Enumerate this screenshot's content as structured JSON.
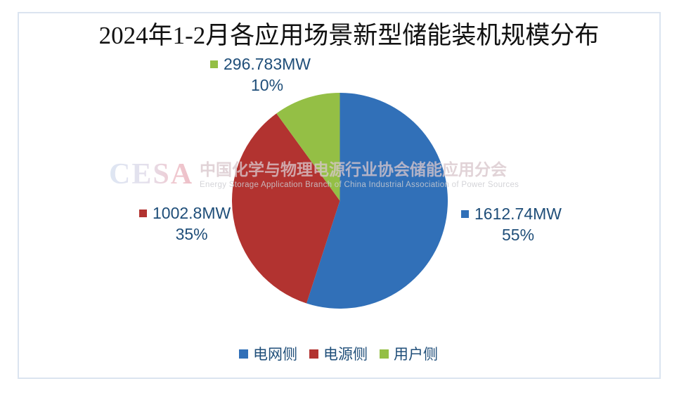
{
  "chart_data": {
    "type": "pie",
    "title": "2024年1-2月各应用场景新型储能装机规模分布",
    "unit": "MW",
    "start_angle_deg": 0,
    "direction": "clockwise",
    "slices": [
      {
        "name": "电网侧",
        "value_mw": 1612.74,
        "percent": 55,
        "value_label": "1612.74MW",
        "percent_label": "55%",
        "color": "#3170B8"
      },
      {
        "name": "电源侧",
        "value_mw": 1002.8,
        "percent": 35,
        "value_label": "1002.8MW",
        "percent_label": "35%",
        "color": "#B23330"
      },
      {
        "name": "用户侧",
        "value_mw": 296.783,
        "percent": 10,
        "value_label": "296.783MW",
        "percent_label": "10%",
        "color": "#94BF45"
      }
    ],
    "legend_position": "bottom",
    "label_text_color": "#1F4E79",
    "title_color": "#111111",
    "frame_border_color": "#DBE4F0"
  },
  "watermark": {
    "cesa": "CESA",
    "cn": "中国化学与物理电源行业协会储能应用分会",
    "en": "Energy Storage Application Branch of China Industrial Association of Power Sources"
  }
}
